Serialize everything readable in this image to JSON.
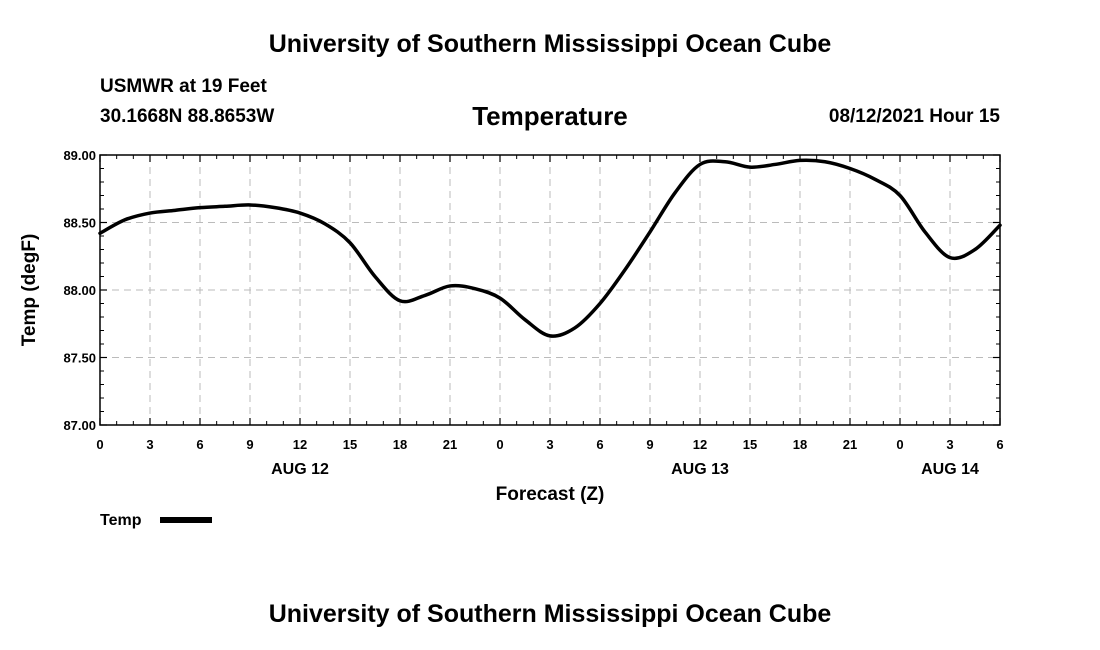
{
  "header": {
    "title": "University of Southern Mississippi Ocean Cube",
    "station": "USMWR at 19 Feet",
    "coords": "30.1668N  88.8653W",
    "chart_title": "Temperature",
    "run_time": "08/12/2021 Hour 15"
  },
  "footer": {
    "title": "University of Southern Mississippi Ocean Cube"
  },
  "colors": {
    "line": "#000000",
    "grid": "#bbbbbb",
    "background": "#ffffff"
  },
  "chart_data": {
    "type": "line",
    "title": "Temperature",
    "xlabel": "Forecast (Z)",
    "ylabel": "Temp (degF)",
    "ylim": [
      87.0,
      89.0
    ],
    "yticks": [
      "87.00",
      "87.50",
      "88.00",
      "88.50",
      "89.00"
    ],
    "xlim": [
      0,
      54
    ],
    "xticks": [
      "0",
      "3",
      "6",
      "9",
      "12",
      "15",
      "18",
      "21",
      "0",
      "3",
      "6",
      "9",
      "12",
      "15",
      "18",
      "21",
      "0",
      "3",
      "6"
    ],
    "date_labels": [
      {
        "label": "AUG 12",
        "hour": 12
      },
      {
        "label": "AUG 13",
        "hour": 36
      },
      {
        "label": "AUG 14",
        "hour": 51
      }
    ],
    "grid": true,
    "legend": "bottom-left",
    "series": [
      {
        "name": "Temp",
        "x": [
          0,
          1.5,
          3,
          4.5,
          6,
          7.5,
          9,
          10.5,
          12,
          13.5,
          15,
          16.5,
          18,
          19.5,
          21,
          22.5,
          24,
          25.5,
          27,
          28.5,
          30,
          31.5,
          33,
          34.5,
          36,
          37.5,
          39,
          40.5,
          42,
          43.5,
          45,
          46.5,
          48,
          49.5,
          51,
          52.5,
          54
        ],
        "values": [
          88.42,
          88.52,
          88.57,
          88.59,
          88.61,
          88.62,
          88.63,
          88.61,
          88.57,
          88.49,
          88.35,
          88.1,
          87.92,
          87.96,
          88.03,
          88.01,
          87.94,
          87.78,
          87.66,
          87.72,
          87.9,
          88.15,
          88.43,
          88.72,
          88.93,
          88.95,
          88.91,
          88.93,
          88.96,
          88.95,
          88.9,
          88.82,
          88.7,
          88.43,
          88.24,
          88.3,
          88.48
        ]
      }
    ]
  }
}
